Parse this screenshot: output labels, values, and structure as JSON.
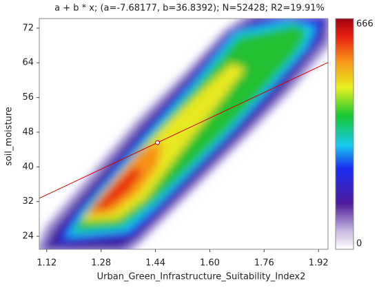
{
  "chart_data": {
    "type": "density",
    "title": "a + b * x; (a=-7.68177, b=36.8392); N=52428; R2=19.91%",
    "x_label": "Urban_Green_Infrastructure_Suitability_Index2",
    "y_label": "soil_moisture",
    "xlim": [
      1.098,
      1.948
    ],
    "xticks": [
      1.12,
      1.28,
      1.44,
      {
        "value": 1.6,
        "label": "1.60"
      },
      1.76,
      1.92
    ],
    "ylim": [
      21,
      74.2
    ],
    "yticks": [
      24,
      32,
      40,
      48,
      56,
      64,
      72
    ],
    "fit": {
      "a": -7.68177,
      "b": 36.8392,
      "color": "#cc0000"
    },
    "mean_point": {
      "x": 1.446,
      "y": 45.6
    },
    "colorbar": {
      "lim": [
        0,
        666
      ],
      "ticks": [
        0,
        666
      ]
    }
  }
}
